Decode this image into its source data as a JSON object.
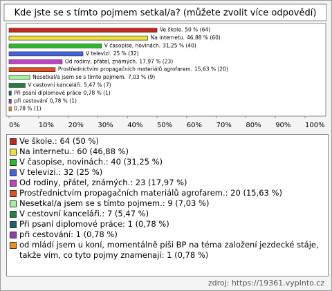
{
  "chart_data": {
    "type": "bar",
    "orientation": "horizontal",
    "title": "Kde jste se s tímto pojmem setkal/a? (můžete zvolit více odpovědí)",
    "categories": [
      "Ve škole.",
      "Na internetu.",
      "V časopise, novinách.",
      "V televizi.",
      "Od rodiny, přátel, známých.",
      "Prostřednictvím propagačních materiálů agrofarem.",
      "Nesetkal/a jsem se s tímto pojmem.",
      "V cestovní kanceláři.",
      "Při psaní diplomové práce",
      "při cestování",
      null
    ],
    "values": [
      50,
      46.88,
      31.25,
      25,
      17.97,
      15.63,
      7.03,
      5.47,
      0.78,
      0.78,
      0.78
    ],
    "value_labels": [
      "50 % (64)",
      "46,88 % (60)",
      "31,25 % (40)",
      "25 % (32)",
      "17,97 % (23)",
      "15,63 % (20)",
      "7,03 % (9)",
      "5,47 % (7)",
      "0,78 % (1)",
      "0,78 % (1)",
      "0,78 % (1)"
    ],
    "colors": [
      "#c0281e",
      "#f0e040",
      "#2cb82c",
      "#4464e0",
      "#c040c8",
      "#e0501e",
      "#a8f0a0",
      "#208040",
      "#1e6070",
      "#9040a8",
      "#f09020"
    ],
    "legend_labels": [
      "Ve škole.: 64 (50 %)",
      "Na internetu.: 60 (46,88 %)",
      "V časopise, novinách.: 40 (31,25 %)",
      "V televizi.: 32 (25 %)",
      "Od rodiny, přátel, známých.: 23 (17,97 %)",
      "Prostřednictvím propagačních materiálů agrofarem.: 20 (15,63 %)",
      "Nesetkal/a jsem se s tímto pojmem.: 9 (7,03 %)",
      "V cestovní kanceláři.: 7 (5,47 %)",
      "Při psaní diplomové práce: 1 (0,78 %)",
      "při cestování: 1 (0,78 %)",
      "od mládí jsem u koní, momentálně píši BP na téma založení jezdecké stáje, takže vím, co tyto pojmy znamenají: 1 (0,78 %)"
    ],
    "xlim": [
      0,
      100
    ],
    "xticks": [
      {
        "value": 0,
        "label": "0%"
      },
      {
        "value": 10,
        "label": "10%"
      },
      {
        "value": 20,
        "label": "20%"
      },
      {
        "value": 30,
        "label": "30%"
      },
      {
        "value": 40,
        "label": "40%"
      },
      {
        "value": 50,
        "label": "50%"
      },
      {
        "value": 60,
        "label": "60%"
      },
      {
        "value": 70,
        "label": "70%"
      },
      {
        "value": 80,
        "label": "80%"
      },
      {
        "value": 90,
        "label": "90%"
      },
      {
        "value": 100,
        "label": "100%"
      }
    ],
    "source": "zdroj: https://19361.vyplnto.cz"
  }
}
